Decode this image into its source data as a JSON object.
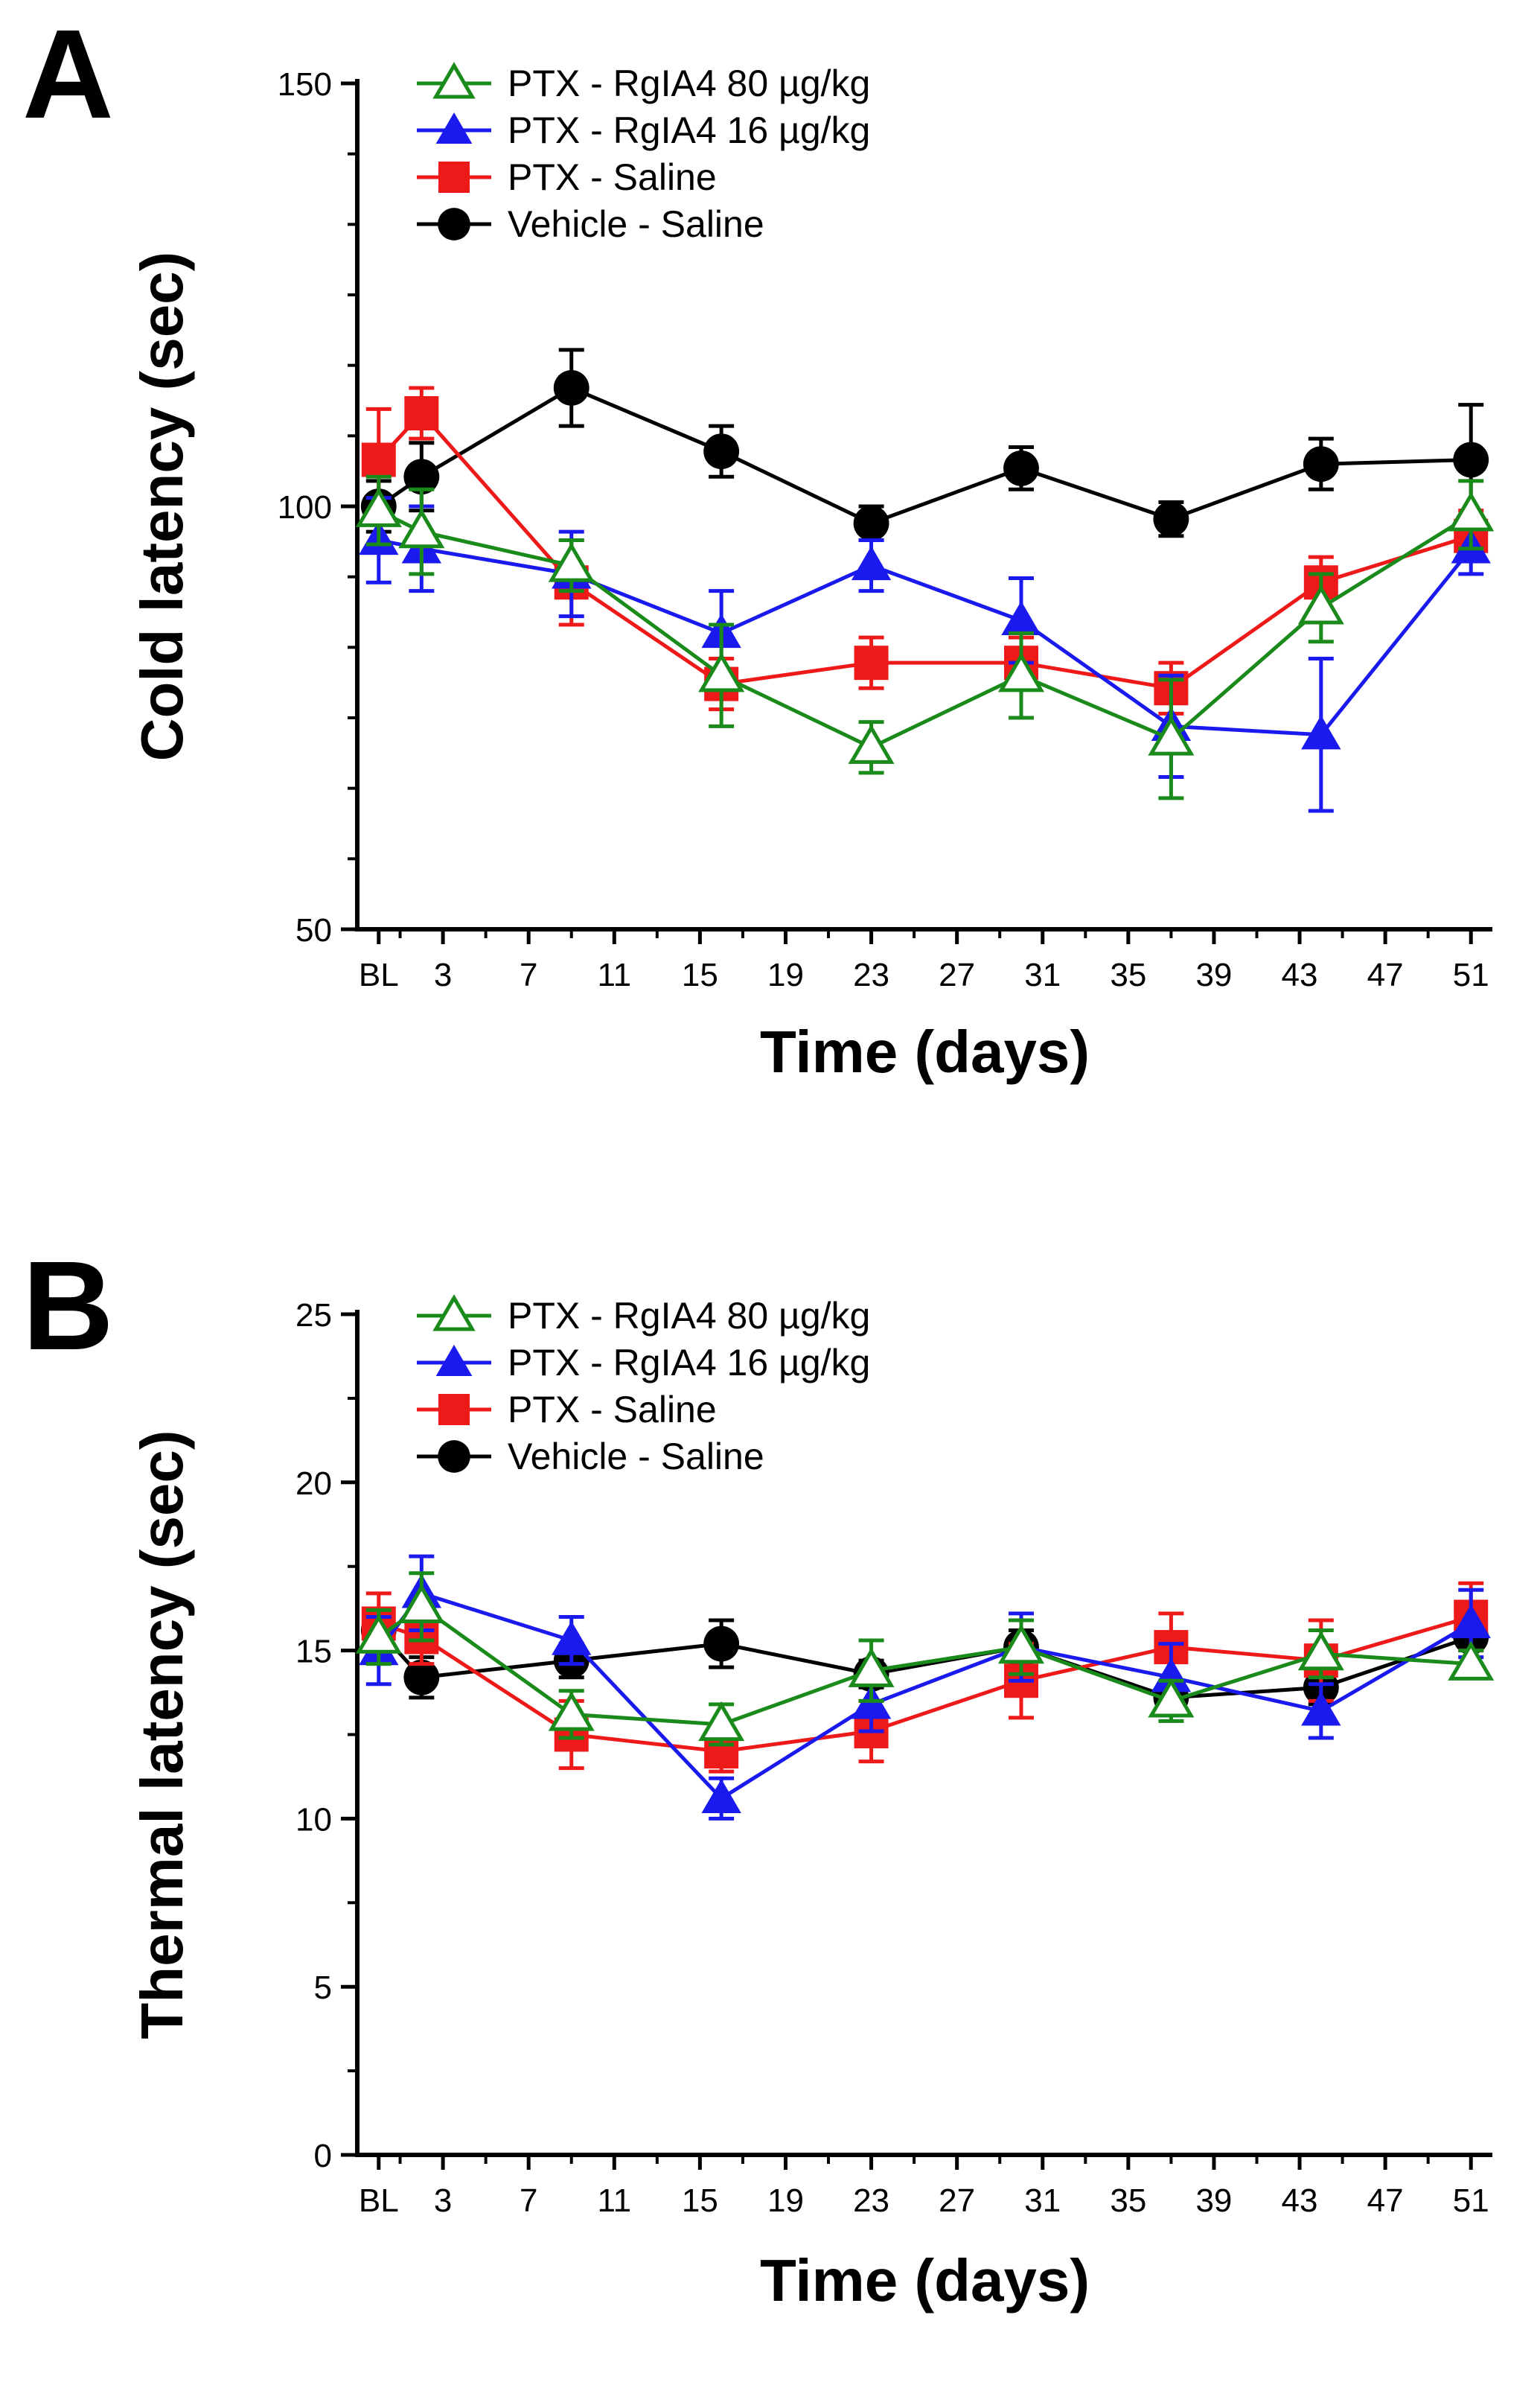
{
  "chart_data": [
    {
      "panel_label": "A",
      "type": "line",
      "title": "",
      "xlabel": "Time (days)",
      "ylabel": "Cold latency (sec)",
      "ylim": [
        50,
        150
      ],
      "yticks": [
        50,
        100,
        150
      ],
      "xlim": [
        -1,
        52
      ],
      "xticks": [
        {
          "label": "BL",
          "value": 0
        },
        {
          "label": "3",
          "value": 3
        },
        {
          "label": "7",
          "value": 7
        },
        {
          "label": "11",
          "value": 11
        },
        {
          "label": "15",
          "value": 15
        },
        {
          "label": "19",
          "value": 19
        },
        {
          "label": "23",
          "value": 23
        },
        {
          "label": "27",
          "value": 27
        },
        {
          "label": "31",
          "value": 31
        },
        {
          "label": "35",
          "value": 35
        },
        {
          "label": "39",
          "value": 39
        },
        {
          "label": "43",
          "value": 43
        },
        {
          "label": "47",
          "value": 47
        },
        {
          "label": "51",
          "value": 51
        }
      ],
      "legend_position": "top-left",
      "series": [
        {
          "name": "PTX - RgIA4 80 µg/kg",
          "color": "#1a8a1a",
          "marker": "triangle-open",
          "points": [
            {
              "x": 0,
              "y": 99.5,
              "err": 4
            },
            {
              "x": 2,
              "y": 97,
              "err": 5
            },
            {
              "x": 9,
              "y": 93,
              "err": 3
            },
            {
              "x": 16,
              "y": 80,
              "err": 6
            },
            {
              "x": 23,
              "y": 71.5,
              "err": 3
            },
            {
              "x": 30,
              "y": 80,
              "err": 5
            },
            {
              "x": 37,
              "y": 72.5,
              "err": 7
            },
            {
              "x": 44,
              "y": 88,
              "err": 4
            },
            {
              "x": 51,
              "y": 99,
              "err": 4
            }
          ]
        },
        {
          "name": "PTX - RgIA4 16 µg/kg",
          "color": "#1a1aee",
          "marker": "triangle",
          "points": [
            {
              "x": 0,
              "y": 96,
              "err": 5
            },
            {
              "x": 2,
              "y": 95,
              "err": 5
            },
            {
              "x": 9,
              "y": 92,
              "err": 5
            },
            {
              "x": 16,
              "y": 85,
              "err": 5
            },
            {
              "x": 23,
              "y": 93,
              "err": 3
            },
            {
              "x": 30,
              "y": 86.5,
              "err": 5
            },
            {
              "x": 37,
              "y": 74,
              "err": 6
            },
            {
              "x": 44,
              "y": 73,
              "err": 9
            },
            {
              "x": 51,
              "y": 95,
              "err": 3
            }
          ]
        },
        {
          "name": "PTX - Saline",
          "color": "#ee1a1a",
          "marker": "square",
          "points": [
            {
              "x": 0,
              "y": 105.5,
              "err": 6
            },
            {
              "x": 2,
              "y": 111,
              "err": 3
            },
            {
              "x": 9,
              "y": 91,
              "err": 5
            },
            {
              "x": 16,
              "y": 79,
              "err": 3
            },
            {
              "x": 23,
              "y": 81.5,
              "err": 3
            },
            {
              "x": 30,
              "y": 81.5,
              "err": 3
            },
            {
              "x": 37,
              "y": 78.5,
              "err": 3
            },
            {
              "x": 44,
              "y": 91,
              "err": 3
            },
            {
              "x": 51,
              "y": 96.5,
              "err": 3
            }
          ]
        },
        {
          "name": "Vehicle - Saline",
          "color": "#000000",
          "marker": "circle",
          "points": [
            {
              "x": 0,
              "y": 100,
              "err": 3
            },
            {
              "x": 2,
              "y": 103.5,
              "err": 4
            },
            {
              "x": 9,
              "y": 114,
              "err": 4.5
            },
            {
              "x": 16,
              "y": 106.5,
              "err": 3
            },
            {
              "x": 23,
              "y": 98,
              "err": 2
            },
            {
              "x": 30,
              "y": 104.5,
              "err": 2.5
            },
            {
              "x": 37,
              "y": 98.5,
              "err": 2
            },
            {
              "x": 44,
              "y": 105,
              "err": 3
            },
            {
              "x": 51,
              "y": 105.5,
              "err": 6.5
            }
          ]
        }
      ]
    },
    {
      "panel_label": "B",
      "type": "line",
      "title": "",
      "xlabel": "Time (days)",
      "ylabel": "Thermal latency (sec)",
      "ylim": [
        0,
        25
      ],
      "yticks": [
        0,
        5,
        10,
        15,
        20,
        25
      ],
      "xlim": [
        -1,
        52
      ],
      "xticks": [
        {
          "label": "BL",
          "value": 0
        },
        {
          "label": "3",
          "value": 3
        },
        {
          "label": "7",
          "value": 7
        },
        {
          "label": "11",
          "value": 11
        },
        {
          "label": "15",
          "value": 15
        },
        {
          "label": "19",
          "value": 19
        },
        {
          "label": "23",
          "value": 23
        },
        {
          "label": "27",
          "value": 27
        },
        {
          "label": "31",
          "value": 31
        },
        {
          "label": "35",
          "value": 35
        },
        {
          "label": "39",
          "value": 39
        },
        {
          "label": "43",
          "value": 43
        },
        {
          "label": "47",
          "value": 47
        },
        {
          "label": "51",
          "value": 51
        }
      ],
      "legend_position": "top-left",
      "series": [
        {
          "name": "PTX - RgIA4 80 µg/kg",
          "color": "#1a8a1a",
          "marker": "triangle-open",
          "points": [
            {
              "x": 0,
              "y": 15.4,
              "err": 0.8
            },
            {
              "x": 2,
              "y": 16.3,
              "err": 1
            },
            {
              "x": 9,
              "y": 13.1,
              "err": 0.7
            },
            {
              "x": 16,
              "y": 12.8,
              "err": 0.6
            },
            {
              "x": 23,
              "y": 14.4,
              "err": 0.9
            },
            {
              "x": 30,
              "y": 15.1,
              "err": 0.8
            },
            {
              "x": 37,
              "y": 13.5,
              "err": 0.6
            },
            {
              "x": 44,
              "y": 14.9,
              "err": 0.7
            },
            {
              "x": 51,
              "y": 14.6,
              "err": 0.4
            }
          ]
        },
        {
          "name": "PTX - RgIA4 16 µg/kg",
          "color": "#1a1aee",
          "marker": "triangle",
          "points": [
            {
              "x": 0,
              "y": 15,
              "err": 1
            },
            {
              "x": 2,
              "y": 16.7,
              "err": 1.1
            },
            {
              "x": 9,
              "y": 15.3,
              "err": 0.7
            },
            {
              "x": 16,
              "y": 10.6,
              "err": 0.6
            },
            {
              "x": 23,
              "y": 13.4,
              "err": 0.8
            },
            {
              "x": 30,
              "y": 15.1,
              "err": 1
            },
            {
              "x": 37,
              "y": 14.2,
              "err": 1
            },
            {
              "x": 44,
              "y": 13.2,
              "err": 0.8
            },
            {
              "x": 51,
              "y": 15.8,
              "err": 1
            }
          ]
        },
        {
          "name": "PTX - Saline",
          "color": "#ee1a1a",
          "marker": "square",
          "points": [
            {
              "x": 0,
              "y": 15.8,
              "err": 0.9
            },
            {
              "x": 2,
              "y": 15.4,
              "err": 0.8
            },
            {
              "x": 9,
              "y": 12.5,
              "err": 1
            },
            {
              "x": 16,
              "y": 12,
              "err": 0.6
            },
            {
              "x": 23,
              "y": 12.6,
              "err": 0.9
            },
            {
              "x": 30,
              "y": 14.1,
              "err": 1.1
            },
            {
              "x": 37,
              "y": 15.1,
              "err": 1
            },
            {
              "x": 44,
              "y": 14.7,
              "err": 1.2
            },
            {
              "x": 51,
              "y": 16,
              "err": 1
            }
          ]
        },
        {
          "name": "Vehicle - Saline",
          "color": "#000000",
          "marker": "circle",
          "points": [
            {
              "x": 0,
              "y": 15.6,
              "err": 0.6
            },
            {
              "x": 2,
              "y": 14.2,
              "err": 0.6
            },
            {
              "x": 9,
              "y": 14.7,
              "err": 0.5
            },
            {
              "x": 16,
              "y": 15.2,
              "err": 0.7
            },
            {
              "x": 23,
              "y": 14.3,
              "err": 0.4
            },
            {
              "x": 30,
              "y": 15.1,
              "err": 0.5
            },
            {
              "x": 37,
              "y": 13.6,
              "err": 0.5
            },
            {
              "x": 44,
              "y": 13.9,
              "err": 0.5
            },
            {
              "x": 51,
              "y": 15.4,
              "err": 0.8
            }
          ]
        }
      ]
    }
  ]
}
